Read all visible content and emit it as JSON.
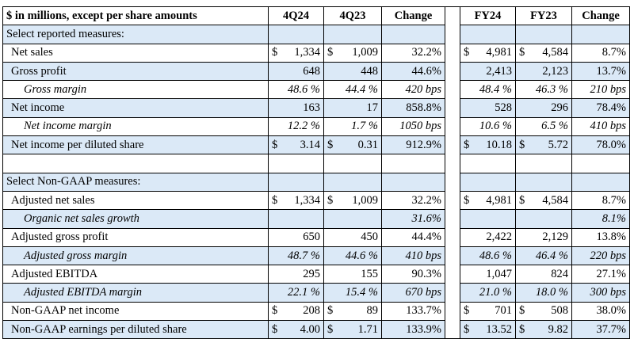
{
  "header": {
    "caption": "$ in millions, except per share amounts",
    "cols": [
      "4Q24",
      "4Q23",
      "Change",
      "FY24",
      "FY23",
      "Change"
    ]
  },
  "rows": [
    {
      "label": "Select reported measures:",
      "kind": "section",
      "cells": [
        [
          "",
          ""
        ],
        [
          "",
          ""
        ],
        [
          "",
          ""
        ],
        [
          "",
          ""
        ],
        [
          "",
          ""
        ],
        [
          "",
          ""
        ]
      ]
    },
    {
      "label": "Net sales",
      "kind": "line",
      "cells": [
        [
          "$",
          "1,334"
        ],
        [
          "$",
          "1,009"
        ],
        [
          "",
          "32.2%"
        ],
        [
          "$",
          "4,981"
        ],
        [
          "$",
          "4,584"
        ],
        [
          "",
          "8.7%"
        ]
      ]
    },
    {
      "label": "Gross profit",
      "kind": "line",
      "cells": [
        [
          "",
          "648"
        ],
        [
          "",
          "448"
        ],
        [
          "",
          "44.6%"
        ],
        [
          "",
          "2,413"
        ],
        [
          "",
          "2,123"
        ],
        [
          "",
          "13.7%"
        ]
      ]
    },
    {
      "label": "Gross margin",
      "kind": "sub",
      "cells": [
        [
          "",
          "48.6 %"
        ],
        [
          "",
          "44.4 %"
        ],
        [
          "",
          "420 bps"
        ],
        [
          "",
          "48.4 %"
        ],
        [
          "",
          "46.3 %"
        ],
        [
          "",
          "210 bps"
        ]
      ]
    },
    {
      "label": "Net income",
      "kind": "line",
      "cells": [
        [
          "",
          "163"
        ],
        [
          "",
          "17"
        ],
        [
          "",
          "858.8%"
        ],
        [
          "",
          "528"
        ],
        [
          "",
          "296"
        ],
        [
          "",
          "78.4%"
        ]
      ]
    },
    {
      "label": "Net income margin",
      "kind": "sub",
      "cells": [
        [
          "",
          "12.2 %"
        ],
        [
          "",
          "1.7 %"
        ],
        [
          "",
          "1050 bps"
        ],
        [
          "",
          "10.6 %"
        ],
        [
          "",
          "6.5 %"
        ],
        [
          "",
          "410 bps"
        ]
      ]
    },
    {
      "label": "Net income per diluted share",
      "kind": "line",
      "cells": [
        [
          "$",
          "3.14"
        ],
        [
          "$",
          "0.31"
        ],
        [
          "",
          "912.9%"
        ],
        [
          "$",
          "10.18"
        ],
        [
          "$",
          "5.72"
        ],
        [
          "",
          "78.0%"
        ]
      ]
    },
    {
      "label": "",
      "kind": "blank",
      "cells": [
        [
          "",
          ""
        ],
        [
          "",
          ""
        ],
        [
          "",
          ""
        ],
        [
          "",
          ""
        ],
        [
          "",
          ""
        ],
        [
          "",
          ""
        ]
      ]
    },
    {
      "label": "Select Non-GAAP measures:",
      "kind": "section",
      "cells": [
        [
          "",
          ""
        ],
        [
          "",
          ""
        ],
        [
          "",
          ""
        ],
        [
          "",
          ""
        ],
        [
          "",
          ""
        ],
        [
          "",
          ""
        ]
      ]
    },
    {
      "label": "Adjusted net sales",
      "kind": "line",
      "cells": [
        [
          "$",
          "1,334"
        ],
        [
          "$",
          "1,009"
        ],
        [
          "",
          "32.2%"
        ],
        [
          "$",
          "4,981"
        ],
        [
          "$",
          "4,584"
        ],
        [
          "",
          "8.7%"
        ]
      ]
    },
    {
      "label": "Organic net sales growth",
      "kind": "sub",
      "cells": [
        [
          "",
          ""
        ],
        [
          "",
          ""
        ],
        [
          "",
          "31.6%"
        ],
        [
          "",
          ""
        ],
        [
          "",
          ""
        ],
        [
          "",
          "8.1%"
        ]
      ]
    },
    {
      "label": "Adjusted gross profit",
      "kind": "line",
      "cells": [
        [
          "",
          "650"
        ],
        [
          "",
          "450"
        ],
        [
          "",
          "44.4%"
        ],
        [
          "",
          "2,422"
        ],
        [
          "",
          "2,129"
        ],
        [
          "",
          "13.8%"
        ]
      ]
    },
    {
      "label": "Adjusted gross margin",
      "kind": "sub",
      "cells": [
        [
          "",
          "48.7 %"
        ],
        [
          "",
          "44.6 %"
        ],
        [
          "",
          "410 bps"
        ],
        [
          "",
          "48.6 %"
        ],
        [
          "",
          "46.4 %"
        ],
        [
          "",
          "220 bps"
        ]
      ]
    },
    {
      "label": "Adjusted EBITDA",
      "kind": "line",
      "cells": [
        [
          "",
          "295"
        ],
        [
          "",
          "155"
        ],
        [
          "",
          "90.3%"
        ],
        [
          "",
          "1,047"
        ],
        [
          "",
          "824"
        ],
        [
          "",
          "27.1%"
        ]
      ]
    },
    {
      "label": "Adjusted EBITDA margin",
      "kind": "sub",
      "cells": [
        [
          "",
          "22.1 %"
        ],
        [
          "",
          "15.4 %"
        ],
        [
          "",
          "670 bps"
        ],
        [
          "",
          "21.0 %"
        ],
        [
          "",
          "18.0 %"
        ],
        [
          "",
          "300 bps"
        ]
      ]
    },
    {
      "label": "Non-GAAP net income",
      "kind": "line",
      "cells": [
        [
          "$",
          "208"
        ],
        [
          "$",
          "89"
        ],
        [
          "",
          "133.7%"
        ],
        [
          "$",
          "701"
        ],
        [
          "$",
          "508"
        ],
        [
          "",
          "38.0%"
        ]
      ]
    },
    {
      "label": "Non-GAAP earnings per diluted share",
      "kind": "line",
      "cells": [
        [
          "$",
          "4.00"
        ],
        [
          "$",
          "1.71"
        ],
        [
          "",
          "133.9%"
        ],
        [
          "$",
          "13.52"
        ],
        [
          "$",
          "9.82"
        ],
        [
          "",
          "37.7%"
        ]
      ]
    }
  ]
}
